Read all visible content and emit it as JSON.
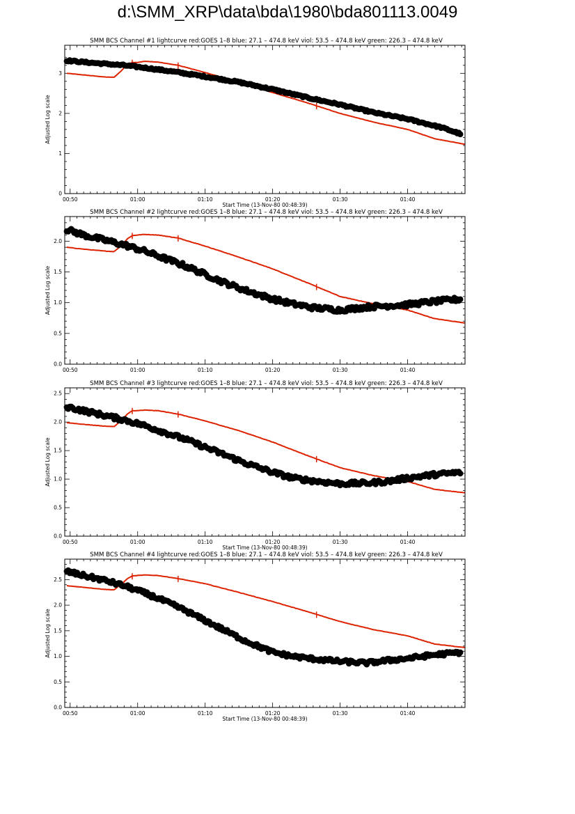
{
  "page": {
    "title": "d:\\SMM_XRP\\data\\bda\\1980\\bda801113.0049"
  },
  "colors": {
    "goes": "#dd2200",
    "bcs": "#000000",
    "axis": "#000000"
  },
  "chart_data": [
    {
      "type": "scatter",
      "title": "SMM BCS Channel #1 lightcurve  red:GOES 1–8  blue: 27.1 – 474.8 keV  viol: 53.5 – 474.8 keV  green: 226.3 – 474.8 keV",
      "xlabel": "Start Time (13-Nov-80 00:48:39)",
      "ylabel": "Adjusted Log scale",
      "x_range_min": [
        49.2,
        108.5
      ],
      "ylim": [
        0,
        3.7
      ],
      "xticks": [
        "00:50",
        "01:00",
        "01:10",
        "01:20",
        "01:30",
        "01:40"
      ],
      "yticks": [
        "0",
        "1",
        "2",
        "3"
      ],
      "series": [
        {
          "name": "GOES 1–8",
          "kind": "line",
          "color": "#dd2200",
          "x": [
            49.5,
            52,
            55,
            56.5,
            57.5,
            58.5,
            59.2,
            60,
            61,
            63,
            66,
            70,
            75,
            80,
            85,
            90,
            95,
            100,
            104,
            108.5
          ],
          "y": [
            3.0,
            2.96,
            2.91,
            2.9,
            3.05,
            3.23,
            3.27,
            3.27,
            3.3,
            3.28,
            3.2,
            3.02,
            2.78,
            2.52,
            2.27,
            2.0,
            1.78,
            1.6,
            1.37,
            1.23
          ]
        },
        {
          "name": "BCS Channel #1",
          "kind": "points",
          "color": "#000000",
          "x": [
            49.5,
            52,
            55,
            58,
            61,
            65,
            70,
            75,
            80,
            85,
            90,
            95,
            100,
            105,
            108
          ],
          "y": [
            3.32,
            3.28,
            3.24,
            3.2,
            3.14,
            3.05,
            2.92,
            2.78,
            2.6,
            2.4,
            2.22,
            2.02,
            1.86,
            1.65,
            1.48
          ],
          "noise": 0.02
        }
      ]
    },
    {
      "type": "scatter",
      "title": "SMM BCS Channel #2 lightcurve  red:GOES 1–8  blue: 27.1 – 474.8 keV  viol: 53.5 – 474.8 keV  green: 226.3 – 474.8 keV",
      "xlabel": "",
      "ylabel": "Adjusted Log scale",
      "x_range_min": [
        49.2,
        108.5
      ],
      "ylim": [
        0,
        2.4
      ],
      "xticks": [
        "00:50",
        "01:00",
        "01:10",
        "01:20",
        "01:30",
        "01:40"
      ],
      "yticks": [
        "0.0",
        "0.5",
        "1.0",
        "1.5",
        "2.0"
      ],
      "series": [
        {
          "name": "GOES 1–8",
          "kind": "line",
          "color": "#dd2200",
          "x": [
            49.5,
            52,
            55,
            56.5,
            57.5,
            58.5,
            59.2,
            60,
            61,
            63,
            66,
            70,
            75,
            80,
            85,
            90,
            95,
            100,
            104,
            108.5
          ],
          "y": [
            1.9,
            1.87,
            1.84,
            1.83,
            1.92,
            2.04,
            2.09,
            2.1,
            2.11,
            2.1,
            2.05,
            1.92,
            1.74,
            1.55,
            1.33,
            1.1,
            0.98,
            0.88,
            0.74,
            0.67
          ]
        },
        {
          "name": "BCS Channel #2",
          "kind": "points",
          "color": "#000000",
          "x": [
            49.5,
            52,
            55,
            58,
            61,
            64,
            67,
            70,
            73,
            76,
            80,
            83,
            86,
            90,
            94,
            97,
            100,
            104,
            108
          ],
          "y": [
            2.19,
            2.1,
            2.02,
            1.94,
            1.84,
            1.72,
            1.6,
            1.46,
            1.32,
            1.2,
            1.06,
            0.98,
            0.92,
            0.88,
            0.93,
            0.95,
            0.97,
            1.02,
            1.06
          ],
          "noise": 0.035
        }
      ]
    },
    {
      "type": "scatter",
      "title": "SMM BCS Channel #3 lightcurve  red:GOES 1–8  blue: 27.1 – 474.8 keV  viol: 53.5 – 474.8 keV  green: 226.3 – 474.8 keV",
      "xlabel": "Start Time (13-Nov-80 00:48:39)",
      "ylabel": "Adjusted Log scale",
      "x_range_min": [
        49.2,
        108.5
      ],
      "ylim": [
        0,
        2.6
      ],
      "xticks": [
        "00:50",
        "01:00",
        "01:10",
        "01:20",
        "01:30",
        "01:40"
      ],
      "yticks": [
        "0.0",
        "0.5",
        "1.0",
        "1.5",
        "2.0",
        "2.5"
      ],
      "series": [
        {
          "name": "GOES 1–8",
          "kind": "line",
          "color": "#dd2200",
          "x": [
            49.5,
            52,
            55,
            56.5,
            57.5,
            58.5,
            59.2,
            60,
            61,
            63,
            66,
            70,
            75,
            80,
            85,
            90,
            95,
            100,
            104,
            108.5
          ],
          "y": [
            1.99,
            1.96,
            1.93,
            1.92,
            2.02,
            2.14,
            2.2,
            2.2,
            2.21,
            2.2,
            2.14,
            2.02,
            1.85,
            1.65,
            1.42,
            1.2,
            1.06,
            0.96,
            0.82,
            0.76
          ]
        },
        {
          "name": "BCS Channel #3",
          "kind": "points",
          "color": "#000000",
          "x": [
            49.5,
            52,
            55,
            58,
            61,
            64,
            67,
            70,
            73,
            76,
            80,
            83,
            86,
            90,
            94,
            97,
            100,
            104,
            108
          ],
          "y": [
            2.27,
            2.2,
            2.12,
            2.04,
            1.94,
            1.82,
            1.7,
            1.56,
            1.42,
            1.28,
            1.12,
            1.02,
            0.97,
            0.92,
            0.93,
            0.96,
            1.02,
            1.08,
            1.12
          ],
          "noise": 0.035
        }
      ]
    },
    {
      "type": "scatter",
      "title": "SMM BCS Channel #4 lightcurve  red:GOES 1–8  blue: 27.1 – 474.8 keV  viol: 53.5 – 474.8 keV  green: 226.3 – 474.8 keV",
      "xlabel": "Start Time (13-Nov-80 00:48:39)",
      "ylabel": "Adjusted Log scale",
      "x_range_min": [
        49.2,
        108.5
      ],
      "ylim": [
        0,
        2.9
      ],
      "xticks": [
        "00:50",
        "01:00",
        "01:10",
        "01:20",
        "01:30",
        "01:40"
      ],
      "yticks": [
        "0.0",
        "0.5",
        "1.0",
        "1.5",
        "2.0",
        "2.5"
      ],
      "series": [
        {
          "name": "GOES 1–8",
          "kind": "line",
          "color": "#dd2200",
          "x": [
            49.5,
            52,
            55,
            56.5,
            57.5,
            58.5,
            59.2,
            60,
            61,
            63,
            66,
            70,
            75,
            80,
            85,
            90,
            95,
            100,
            104,
            108.5
          ],
          "y": [
            2.38,
            2.35,
            2.31,
            2.3,
            2.4,
            2.52,
            2.57,
            2.58,
            2.59,
            2.58,
            2.52,
            2.42,
            2.25,
            2.07,
            1.88,
            1.68,
            1.52,
            1.4,
            1.24,
            1.17
          ]
        },
        {
          "name": "BCS Channel #4",
          "kind": "points",
          "color": "#000000",
          "x": [
            49.5,
            52,
            55,
            58,
            61,
            64,
            67,
            70,
            73,
            76,
            80,
            83,
            86,
            90,
            94,
            97,
            100,
            104,
            108
          ],
          "y": [
            2.66,
            2.58,
            2.49,
            2.38,
            2.24,
            2.08,
            1.9,
            1.7,
            1.5,
            1.3,
            1.08,
            1.0,
            0.95,
            0.9,
            0.87,
            0.92,
            0.96,
            1.03,
            1.08
          ],
          "noise": 0.035
        }
      ]
    }
  ]
}
